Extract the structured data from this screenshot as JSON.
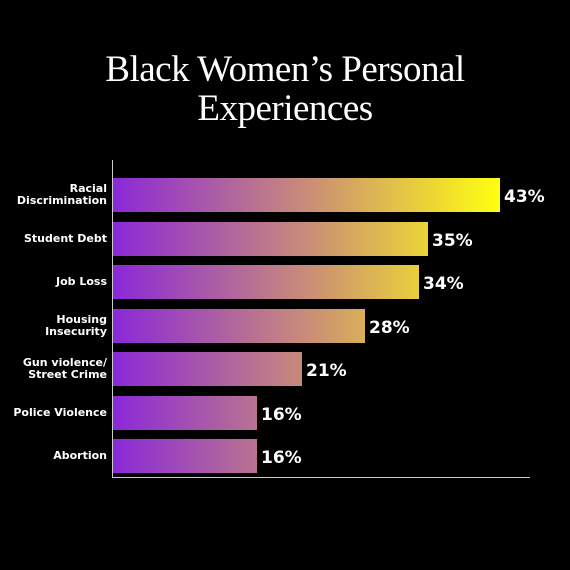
{
  "chart_data": {
    "type": "bar",
    "orientation": "horizontal",
    "title": "Black Women’s Personal Experiences",
    "categories": [
      "Racial Discrimination",
      "Student Debt",
      "Job Loss",
      "Housing Insecurity",
      "Gun violence/ Street Crime",
      "Police Violence",
      "Abortion"
    ],
    "values": [
      43,
      35,
      34,
      28,
      21,
      16,
      16
    ],
    "value_labels": [
      "43%",
      "35%",
      "34%",
      "28%",
      "21%",
      "16%",
      "16%"
    ],
    "color": [
      "#8a28d8",
      "#c98c78",
      "#ffff10"
    ]
  }
}
